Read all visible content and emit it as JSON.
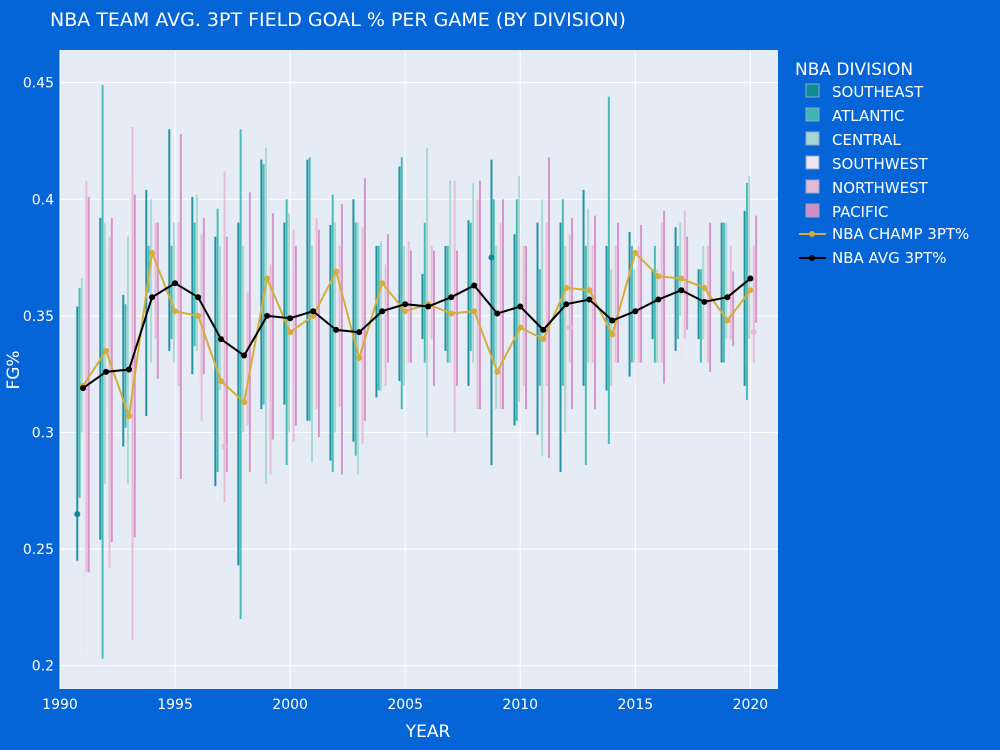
{
  "chart_data": {
    "type": "scatter",
    "title": "NBA TEAM AVG. 3PT FIELD GOAL % PER GAME (BY DIVISION)",
    "xlabel": "YEAR",
    "ylabel": "FG%",
    "xlim": [
      1990,
      2021.2
    ],
    "ylim": [
      0.19,
      0.464
    ],
    "x_ticks": [
      1990,
      1995,
      2000,
      2005,
      2010,
      2015,
      2020
    ],
    "y_ticks": [
      0.2,
      0.25,
      0.3,
      0.35,
      0.4,
      0.45
    ],
    "x_tick_labels": [
      "1990",
      "1995",
      "2000",
      "2005",
      "2010",
      "2015",
      "2020"
    ],
    "y_tick_labels": [
      "0.2",
      "0.25",
      "0.3",
      "0.35",
      "0.4",
      "0.45"
    ],
    "grid": true,
    "legend_title": "NBA DIVISION",
    "legend_position": "right",
    "divisions": [
      {
        "name": "SOUTHEAST",
        "color": "#0e8a97",
        "offset": -0.25,
        "points": [
          [
            1991,
            0.265,
            0.245,
            0.354
          ],
          [
            2009,
            0.375,
            0.355,
            0.395
          ]
        ]
      },
      {
        "name": "ATLANTIC",
        "color": "#3ab7b0",
        "offset": -0.15,
        "points": []
      },
      {
        "name": "CENTRAL",
        "color": "#a4d6d4",
        "offset": -0.05,
        "points": []
      },
      {
        "name": "SOUTHWEST",
        "color": "#ede5ef",
        "offset": 0.05,
        "points": []
      },
      {
        "name": "NORTHWEST",
        "color": "#e6b8d9",
        "offset": 0.15,
        "points": [
          [
            1997,
            0.294,
            0.27,
            0.31
          ],
          [
            2012,
            0.345,
            0.32,
            0.37
          ],
          [
            2020,
            0.343,
            0.325,
            0.36
          ]
        ]
      },
      {
        "name": "PACIFIC",
        "color": "#d58cc4",
        "offset": 0.25,
        "points": []
      }
    ],
    "ranges": [
      {
        "year": 1991,
        "lows": [
          0.245,
          0.272,
          0.3,
          0.205,
          0.24,
          0.24
        ],
        "highs": [
          0.354,
          0.362,
          0.366,
          0.408,
          0.408,
          0.401
        ]
      },
      {
        "year": 1992,
        "lows": [
          0.254,
          0.203,
          0.278,
          0.31,
          0.242,
          0.253
        ],
        "highs": [
          0.392,
          0.449,
          0.39,
          0.38,
          0.384,
          0.392
        ]
      },
      {
        "year": 1993,
        "lows": [
          0.294,
          0.302,
          0.278,
          0.31,
          0.211,
          0.255
        ],
        "highs": [
          0.359,
          0.355,
          0.384,
          0.41,
          0.431,
          0.402
        ]
      },
      {
        "year": 1994,
        "lows": [
          0.307,
          0.36,
          0.33,
          0.35,
          0.34,
          0.323
        ],
        "highs": [
          0.404,
          0.38,
          0.4,
          0.395,
          0.39,
          0.39
        ]
      },
      {
        "year": 1995,
        "lows": [
          0.335,
          0.34,
          0.33,
          0.34,
          0.32,
          0.28
        ],
        "highs": [
          0.43,
          0.38,
          0.39,
          0.38,
          0.39,
          0.428
        ]
      },
      {
        "year": 1996,
        "lows": [
          0.325,
          0.337,
          0.335,
          0.32,
          0.305,
          0.325
        ],
        "highs": [
          0.401,
          0.39,
          0.402,
          0.37,
          0.385,
          0.392
        ]
      },
      {
        "year": 1997,
        "lows": [
          0.277,
          0.283,
          0.318,
          0.3,
          0.27,
          0.283
        ],
        "highs": [
          0.384,
          0.396,
          0.38,
          0.36,
          0.412,
          0.384
        ]
      },
      {
        "year": 1998,
        "lows": [
          0.243,
          0.22,
          0.3,
          0.3,
          0.303,
          0.283
        ],
        "highs": [
          0.39,
          0.43,
          0.38,
          0.36,
          0.36,
          0.403
        ]
      },
      {
        "year": 1999,
        "lows": [
          0.31,
          0.312,
          0.278,
          0.3,
          0.282,
          0.297
        ],
        "highs": [
          0.417,
          0.415,
          0.422,
          0.38,
          0.372,
          0.394
        ]
      },
      {
        "year": 2000,
        "lows": [
          0.312,
          0.286,
          0.3,
          0.32,
          0.296,
          0.303
        ],
        "highs": [
          0.39,
          0.4,
          0.394,
          0.37,
          0.387,
          0.38
        ]
      },
      {
        "year": 2001,
        "lows": [
          0.305,
          0.305,
          0.287,
          0.31,
          0.31,
          0.298
        ],
        "highs": [
          0.417,
          0.418,
          0.38,
          0.4,
          0.392,
          0.387
        ]
      },
      {
        "year": 2002,
        "lows": [
          0.288,
          0.283,
          0.3,
          0.31,
          0.311,
          0.282
        ],
        "highs": [
          0.389,
          0.402,
          0.39,
          0.38,
          0.38,
          0.398
        ]
      },
      {
        "year": 2003,
        "lows": [
          0.296,
          0.29,
          0.282,
          0.3,
          0.295,
          0.305
        ],
        "highs": [
          0.4,
          0.39,
          0.39,
          0.37,
          0.388,
          0.409
        ]
      },
      {
        "year": 2004,
        "lows": [
          0.315,
          0.318,
          0.318,
          0.32,
          0.32,
          0.33
        ],
        "highs": [
          0.38,
          0.38,
          0.382,
          0.37,
          0.372,
          0.385
        ]
      },
      {
        "year": 2005,
        "lows": [
          0.322,
          0.31,
          0.32,
          0.33,
          0.33,
          0.33
        ],
        "highs": [
          0.414,
          0.418,
          0.38,
          0.4,
          0.382,
          0.378
        ]
      },
      {
        "year": 2006,
        "lows": [
          0.34,
          0.33,
          0.298,
          0.33,
          0.34,
          0.32
        ],
        "highs": [
          0.368,
          0.39,
          0.422,
          0.4,
          0.38,
          0.378
        ]
      },
      {
        "year": 2007,
        "lows": [
          0.335,
          0.33,
          0.33,
          0.32,
          0.3,
          0.32
        ],
        "highs": [
          0.38,
          0.38,
          0.408,
          0.4,
          0.408,
          0.378
        ]
      },
      {
        "year": 2008,
        "lows": [
          0.32,
          0.335,
          0.33,
          0.31,
          0.31,
          0.31
        ],
        "highs": [
          0.391,
          0.39,
          0.407,
          0.4,
          0.4,
          0.408
        ]
      },
      {
        "year": 2009,
        "lows": [
          0.286,
          0.33,
          0.31,
          0.31,
          0.31,
          0.31
        ],
        "highs": [
          0.417,
          0.4,
          0.38,
          0.37,
          0.39,
          0.4
        ]
      },
      {
        "year": 2010,
        "lows": [
          0.303,
          0.305,
          0.313,
          0.31,
          0.32,
          0.31
        ],
        "highs": [
          0.385,
          0.4,
          0.41,
          0.38,
          0.38,
          0.38
        ]
      },
      {
        "year": 2011,
        "lows": [
          0.299,
          0.32,
          0.29,
          0.31,
          0.32,
          0.289
        ],
        "highs": [
          0.39,
          0.37,
          0.4,
          0.38,
          0.39,
          0.418
        ]
      },
      {
        "year": 2012,
        "lows": [
          0.283,
          0.32,
          0.3,
          0.31,
          0.33,
          0.31
        ],
        "highs": [
          0.39,
          0.4,
          0.38,
          0.38,
          0.385,
          0.392
        ]
      },
      {
        "year": 2013,
        "lows": [
          0.32,
          0.286,
          0.33,
          0.32,
          0.33,
          0.31
        ],
        "highs": [
          0.404,
          0.38,
          0.396,
          0.39,
          0.38,
          0.393
        ]
      },
      {
        "year": 2014,
        "lows": [
          0.318,
          0.295,
          0.32,
          0.32,
          0.33,
          0.33
        ],
        "highs": [
          0.38,
          0.444,
          0.37,
          0.38,
          0.38,
          0.39
        ]
      },
      {
        "year": 2015,
        "lows": [
          0.324,
          0.33,
          0.33,
          0.32,
          0.33,
          0.33
        ],
        "highs": [
          0.386,
          0.38,
          0.37,
          0.37,
          0.38,
          0.389
        ]
      },
      {
        "year": 2016,
        "lows": [
          0.34,
          0.33,
          0.33,
          0.33,
          0.33,
          0.321
        ],
        "highs": [
          0.37,
          0.38,
          0.37,
          0.38,
          0.39,
          0.395
        ]
      },
      {
        "year": 2017,
        "lows": [
          0.335,
          0.34,
          0.35,
          0.33,
          0.34,
          0.344
        ],
        "highs": [
          0.388,
          0.38,
          0.39,
          0.37,
          0.395,
          0.384
        ]
      },
      {
        "year": 2018,
        "lows": [
          0.34,
          0.33,
          0.34,
          0.33,
          0.33,
          0.326
        ],
        "highs": [
          0.37,
          0.37,
          0.38,
          0.37,
          0.38,
          0.39
        ]
      },
      {
        "year": 2019,
        "lows": [
          0.33,
          0.33,
          0.34,
          0.33,
          0.34,
          0.337
        ],
        "highs": [
          0.39,
          0.39,
          0.39,
          0.37,
          0.38,
          0.369
        ]
      },
      {
        "year": 2020,
        "lows": [
          0.32,
          0.314,
          0.34,
          0.33,
          0.33,
          0.347
        ],
        "highs": [
          0.395,
          0.407,
          0.41,
          0.38,
          0.38,
          0.393
        ]
      }
    ],
    "series": [
      {
        "name": "NBA CHAMP 3PT%",
        "color": "#d4ae3c",
        "x": [
          1991,
          1992,
          1993,
          1994,
          1995,
          1996,
          1997,
          1998,
          1999,
          2000,
          2001,
          2002,
          2003,
          2004,
          2005,
          2006,
          2007,
          2008,
          2009,
          2010,
          2011,
          2012,
          2013,
          2014,
          2015,
          2016,
          2017,
          2018,
          2019,
          2020
        ],
        "values": [
          0.32,
          0.335,
          0.307,
          0.377,
          0.352,
          0.35,
          0.322,
          0.313,
          0.366,
          0.343,
          0.35,
          0.369,
          0.332,
          0.364,
          0.352,
          0.355,
          0.351,
          0.352,
          0.326,
          0.345,
          0.34,
          0.362,
          0.361,
          0.342,
          0.377,
          0.367,
          0.366,
          0.362,
          0.348,
          0.361
        ]
      },
      {
        "name": "NBA AVG 3PT%",
        "color": "#000000",
        "x": [
          1991,
          1992,
          1993,
          1994,
          1995,
          1996,
          1997,
          1998,
          1999,
          2000,
          2001,
          2002,
          2003,
          2004,
          2005,
          2006,
          2007,
          2008,
          2009,
          2010,
          2011,
          2012,
          2013,
          2014,
          2015,
          2016,
          2017,
          2018,
          2019,
          2020
        ],
        "values": [
          0.319,
          0.326,
          0.327,
          0.358,
          0.364,
          0.358,
          0.34,
          0.333,
          0.35,
          0.349,
          0.352,
          0.344,
          0.343,
          0.352,
          0.355,
          0.354,
          0.358,
          0.363,
          0.351,
          0.354,
          0.344,
          0.355,
          0.357,
          0.348,
          0.352,
          0.357,
          0.361,
          0.356,
          0.358,
          0.366
        ]
      }
    ]
  }
}
